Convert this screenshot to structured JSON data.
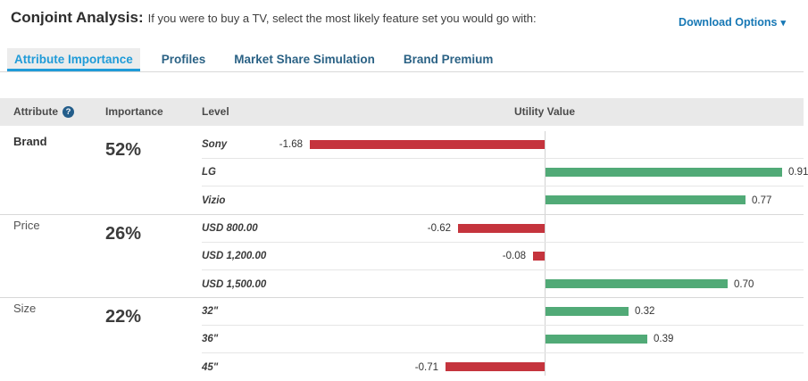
{
  "header": {
    "title": "Conjoint Analysis:",
    "subtitle": "If you were to buy a TV, select the most likely feature set you would go with:",
    "download_label": "Download Options",
    "download_caret": "▾"
  },
  "tabs": [
    {
      "label": "Attribute Importance",
      "active": true
    },
    {
      "label": "Profiles",
      "active": false
    },
    {
      "label": "Market Share Simulation",
      "active": false
    },
    {
      "label": "Brand Premium",
      "active": false
    }
  ],
  "table_header": {
    "attribute": "Attribute",
    "help_glyph": "?",
    "importance": "Importance",
    "level": "Level",
    "utility": "Utility Value"
  },
  "chart_data": {
    "type": "bar",
    "orientation": "horizontal",
    "title": "Attribute Importance — Utility Value",
    "value_axis": {
      "zero_line": true,
      "neg_max": 1.68,
      "pos_max": 0.91
    },
    "colors": {
      "negative": "#c5343d",
      "positive": "#51aa77"
    },
    "groups": [
      {
        "attribute": "Brand",
        "importance": "52%",
        "emphasis": true,
        "levels": [
          {
            "label": "Sony",
            "value": -1.68,
            "value_label": "-1.68"
          },
          {
            "label": "LG",
            "value": 0.91,
            "value_label": "0.91"
          },
          {
            "label": "Vizio",
            "value": 0.77,
            "value_label": "0.77"
          }
        ]
      },
      {
        "attribute": "Price",
        "importance": "26%",
        "emphasis": false,
        "levels": [
          {
            "label": "USD 800.00",
            "value": -0.62,
            "value_label": "-0.62"
          },
          {
            "label": "USD 1,200.00",
            "value": -0.08,
            "value_label": "-0.08"
          },
          {
            "label": "USD 1,500.00",
            "value": 0.7,
            "value_label": "0.70"
          }
        ]
      },
      {
        "attribute": "Size",
        "importance": "22%",
        "emphasis": false,
        "levels": [
          {
            "label": "32\"",
            "value": 0.32,
            "value_label": "0.32"
          },
          {
            "label": "36\"",
            "value": 0.39,
            "value_label": "0.39"
          },
          {
            "label": "45\"",
            "value": -0.71,
            "value_label": "-0.71"
          }
        ]
      }
    ]
  }
}
